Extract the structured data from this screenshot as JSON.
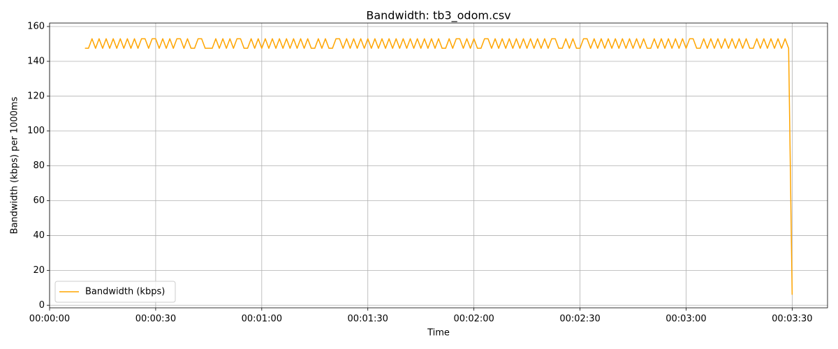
{
  "chart_data": {
    "type": "line",
    "title": "Bandwidth: tb3_odom.csv",
    "xlabel": "Time",
    "ylabel": "Bandwidth (kbps) per 1000ms",
    "x": [
      10,
      11,
      12,
      13,
      14,
      15,
      16,
      17,
      18,
      19,
      20,
      21,
      22,
      23,
      24,
      25,
      26,
      27,
      28,
      29,
      30,
      31,
      32,
      33,
      34,
      35,
      36,
      37,
      38,
      39,
      40,
      41,
      42,
      43,
      44,
      45,
      46,
      47,
      48,
      49,
      50,
      51,
      52,
      53,
      54,
      55,
      56,
      57,
      58,
      59,
      60,
      61,
      62,
      63,
      64,
      65,
      66,
      67,
      68,
      69,
      70,
      71,
      72,
      73,
      74,
      75,
      76,
      77,
      78,
      79,
      80,
      81,
      82,
      83,
      84,
      85,
      86,
      87,
      88,
      89,
      90,
      91,
      92,
      93,
      94,
      95,
      96,
      97,
      98,
      99,
      100,
      101,
      102,
      103,
      104,
      105,
      106,
      107,
      108,
      109,
      110,
      111,
      112,
      113,
      114,
      115,
      116,
      117,
      118,
      119,
      120,
      121,
      122,
      123,
      124,
      125,
      126,
      127,
      128,
      129,
      130,
      131,
      132,
      133,
      134,
      135,
      136,
      137,
      138,
      139,
      140,
      141,
      142,
      143,
      144,
      145,
      146,
      147,
      148,
      149,
      150,
      151,
      152,
      153,
      154,
      155,
      156,
      157,
      158,
      159,
      160,
      161,
      162,
      163,
      164,
      165,
      166,
      167,
      168,
      169,
      170,
      171,
      172,
      173,
      174,
      175,
      176,
      177,
      178,
      179,
      180,
      181,
      182,
      183,
      184,
      185,
      186,
      187,
      188,
      189,
      190,
      191,
      192,
      193,
      194,
      195,
      196,
      197,
      198,
      199,
      200,
      201,
      202,
      203,
      204,
      205,
      206,
      207,
      208,
      209,
      210
    ],
    "series": [
      {
        "name": "Bandwidth (kbps)",
        "color": "#ffa500",
        "values": [
          147.5,
          147.5,
          153,
          147.5,
          153,
          147.5,
          153,
          147.5,
          153,
          147.5,
          153,
          147.5,
          153,
          147.5,
          153,
          147.5,
          153,
          153,
          147.5,
          153,
          153,
          147.5,
          153,
          147.5,
          153,
          147.5,
          153,
          153,
          147.5,
          153,
          147.5,
          147.5,
          153,
          153,
          147.5,
          147.5,
          147.5,
          153,
          147.5,
          153,
          147.5,
          153,
          147.5,
          153,
          153,
          147.5,
          147.5,
          153,
          147.5,
          153,
          147.5,
          153,
          147.5,
          153,
          147.5,
          153,
          147.5,
          153,
          147.5,
          153,
          147.5,
          153,
          147.5,
          153,
          147.5,
          147.5,
          153,
          147.5,
          153,
          147.5,
          147.5,
          153,
          153,
          147.5,
          153,
          147.5,
          153,
          147.5,
          153,
          147.5,
          153,
          147.5,
          153,
          147.5,
          153,
          147.5,
          153,
          147.5,
          153,
          147.5,
          153,
          147.5,
          153,
          147.5,
          153,
          147.5,
          153,
          147.5,
          153,
          147.5,
          153,
          147.5,
          147.5,
          153,
          147.5,
          153,
          153,
          147.5,
          153,
          147.5,
          153,
          147.5,
          147.5,
          153,
          153,
          147.5,
          153,
          147.5,
          153,
          147.5,
          153,
          147.5,
          153,
          147.5,
          153,
          147.5,
          153,
          147.5,
          153,
          147.5,
          153,
          147.5,
          153,
          153,
          147.5,
          147.5,
          153,
          147.5,
          153,
          147.5,
          147.5,
          153,
          153,
          147.5,
          153,
          147.5,
          153,
          147.5,
          153,
          147.5,
          153,
          147.5,
          153,
          147.5,
          153,
          147.5,
          153,
          147.5,
          153,
          147.5,
          147.5,
          153,
          147.5,
          153,
          147.5,
          153,
          147.5,
          153,
          147.5,
          153,
          147.5,
          153,
          153,
          147.5,
          147.5,
          153,
          147.5,
          153,
          147.5,
          153,
          147.5,
          153,
          147.5,
          153,
          147.5,
          153,
          147.5,
          153,
          147.5,
          147.5,
          153,
          147.5,
          153,
          147.5,
          153,
          147.5,
          153,
          147.5,
          153,
          147.5,
          6
        ]
      }
    ],
    "xlim": [
      0,
      220
    ],
    "xticks": [
      {
        "value": 0,
        "label": "00:00:00"
      },
      {
        "value": 30,
        "label": "00:00:30"
      },
      {
        "value": 60,
        "label": "00:01:00"
      },
      {
        "value": 90,
        "label": "00:01:30"
      },
      {
        "value": 120,
        "label": "00:02:00"
      },
      {
        "value": 150,
        "label": "00:02:30"
      },
      {
        "value": 180,
        "label": "00:03:00"
      },
      {
        "value": 210,
        "label": "00:03:30"
      }
    ],
    "ylim": [
      -1.5,
      162
    ],
    "yticks": [
      0,
      20,
      40,
      60,
      80,
      100,
      120,
      140,
      160
    ],
    "grid": true,
    "legend": "lower left"
  }
}
